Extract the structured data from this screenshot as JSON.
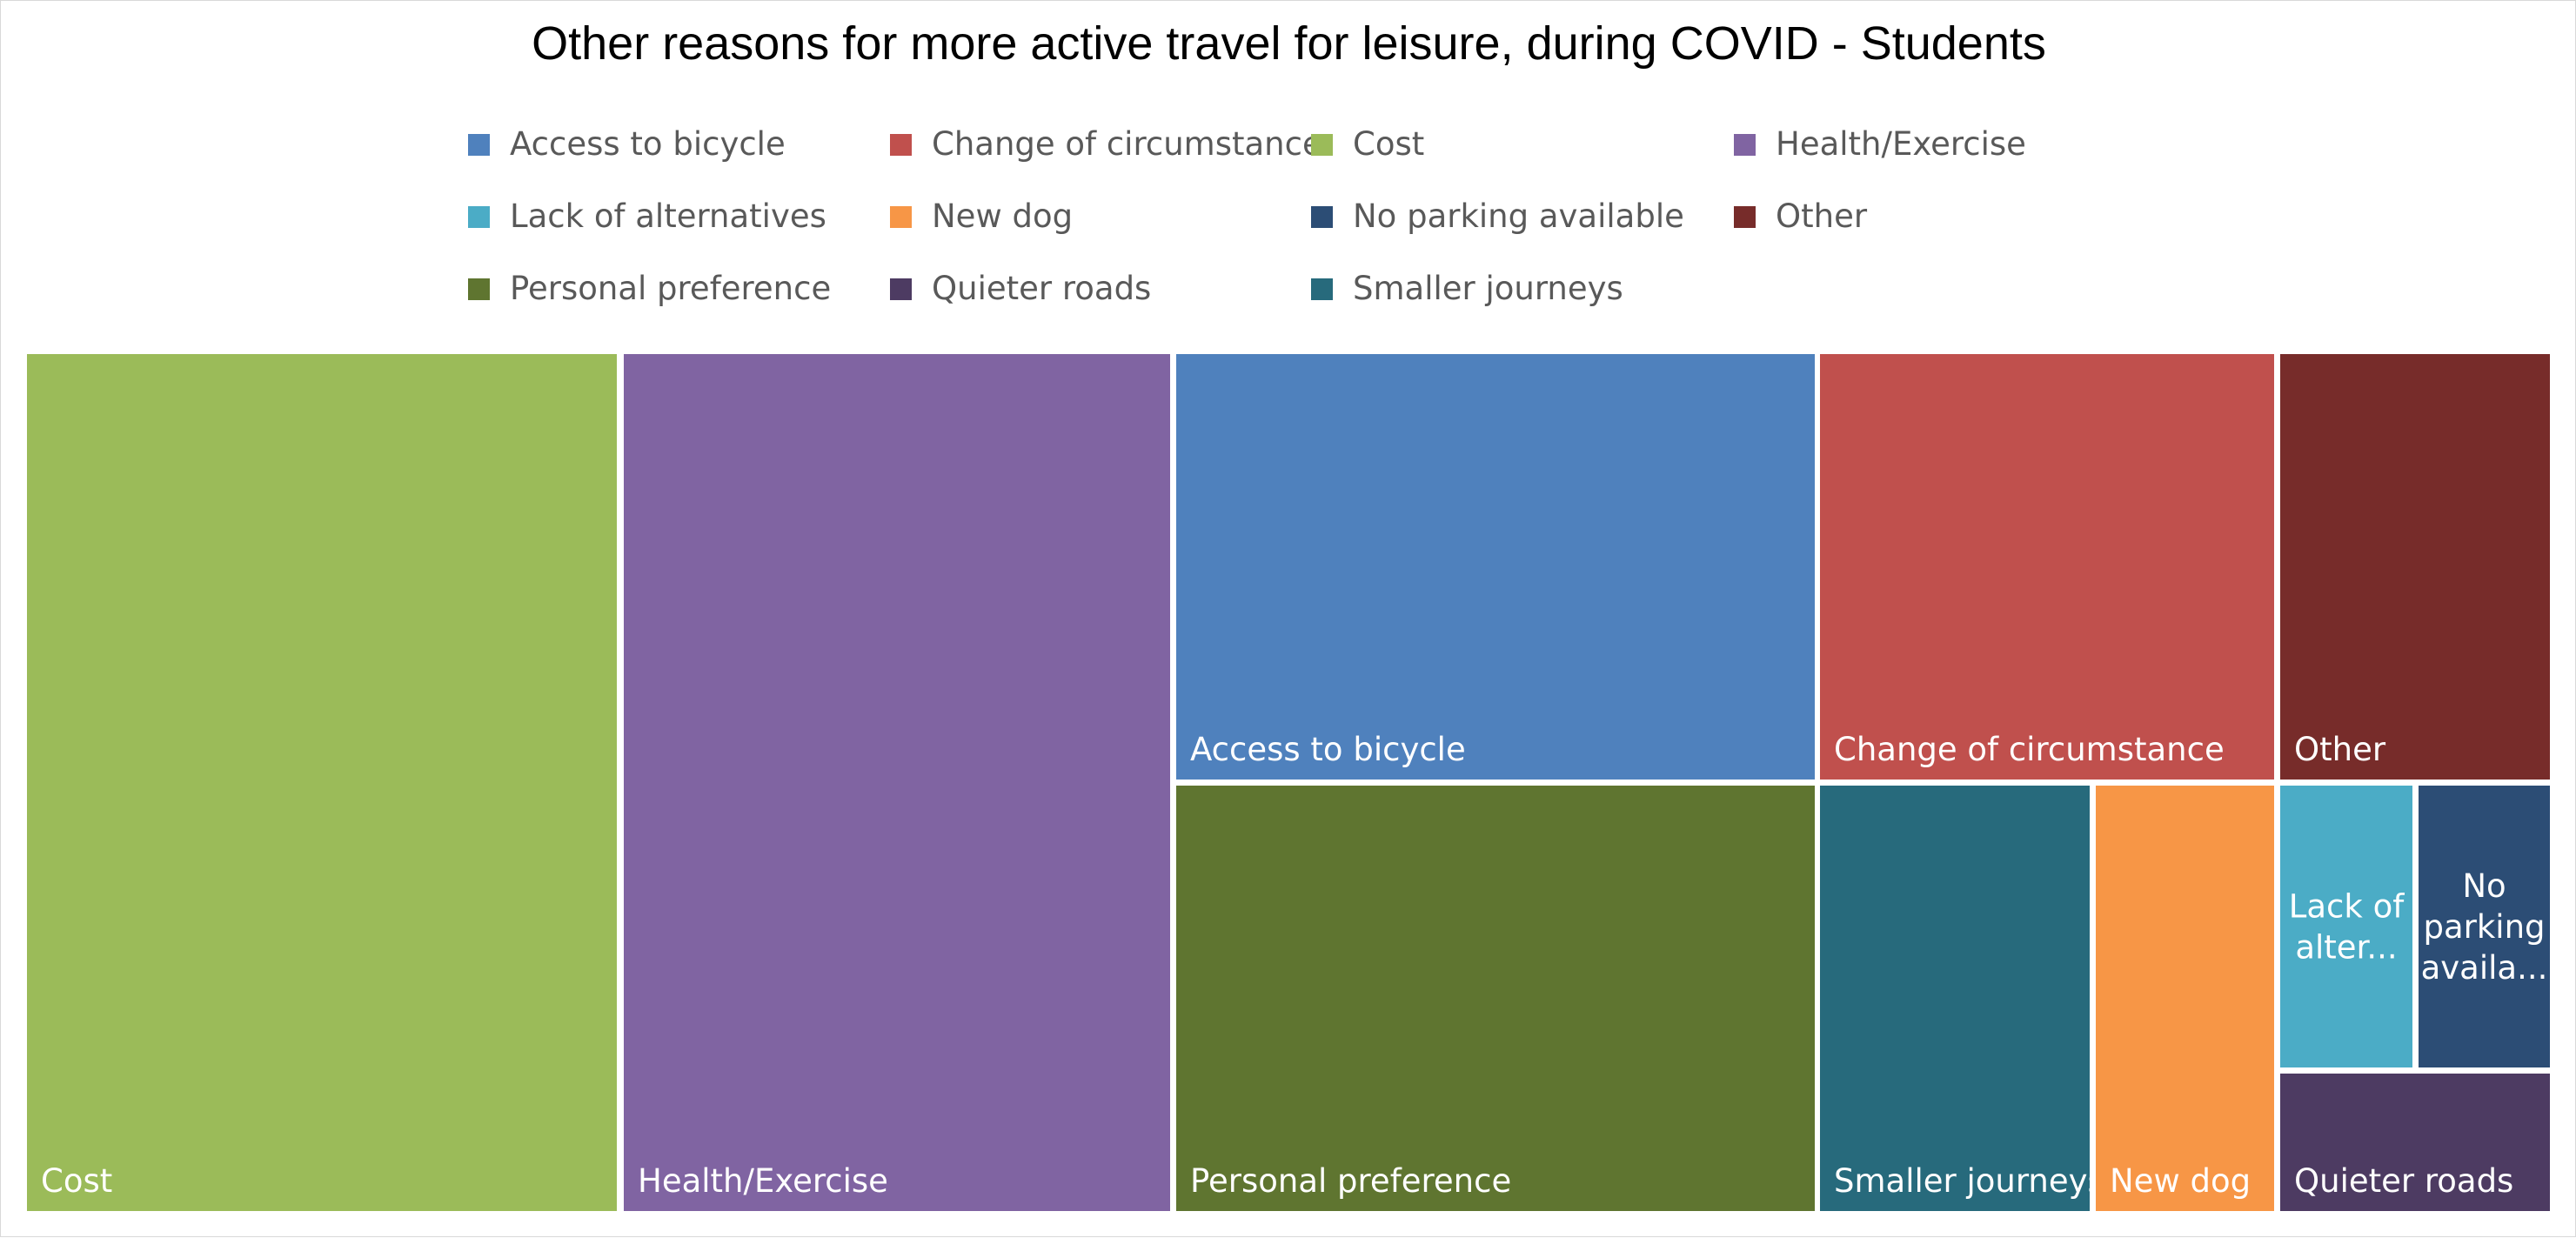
{
  "chart_data": {
    "type": "treemap",
    "title": "Other reasons for more active travel for leisure, during COVID - Students",
    "legend_position": "top",
    "grid": false,
    "categories": [
      {
        "name": "Access to bicycle",
        "color": "#4F81BD",
        "value": 6
      },
      {
        "name": "Change of circumstance",
        "color": "#C0504D",
        "value": 4.3
      },
      {
        "name": "Cost",
        "color": "#9BBB59",
        "value": 11
      },
      {
        "name": "Health/Exercise",
        "color": "#8064A2",
        "value": 10
      },
      {
        "name": "Lack of alternatives",
        "color": "#4BACC6",
        "value": 0.85
      },
      {
        "name": "New dog",
        "color": "#F79646",
        "value": 1.65
      },
      {
        "name": "No parking available",
        "color": "#2C4D75",
        "value": 0.85
      },
      {
        "name": "Other",
        "color": "#772C2A",
        "value": 2.5
      },
      {
        "name": "Personal preference",
        "color": "#5F7530",
        "value": 6
      },
      {
        "name": "Quieter roads",
        "color": "#4D3B62",
        "value": 1.6
      },
      {
        "name": "Smaller journeys",
        "color": "#276A7C",
        "value": 2.5
      }
    ],
    "tile_labels": {
      "Access to bicycle": [
        "Access to bicycle"
      ],
      "Change of circumstance": [
        "Change of circumstance"
      ],
      "Cost": [
        "Cost"
      ],
      "Health/Exercise": [
        "Health/Exercise"
      ],
      "Lack of alternatives": [
        "Lack of",
        "alter..."
      ],
      "New dog": [
        "New dog"
      ],
      "No parking available": [
        "No",
        "parking",
        "availa..."
      ],
      "Other": [
        "Other"
      ],
      "Personal preference": [
        "Personal preference"
      ],
      "Quieter roads": [
        "Quieter roads"
      ],
      "Smaller journeys": [
        "Smaller journeys"
      ]
    }
  }
}
